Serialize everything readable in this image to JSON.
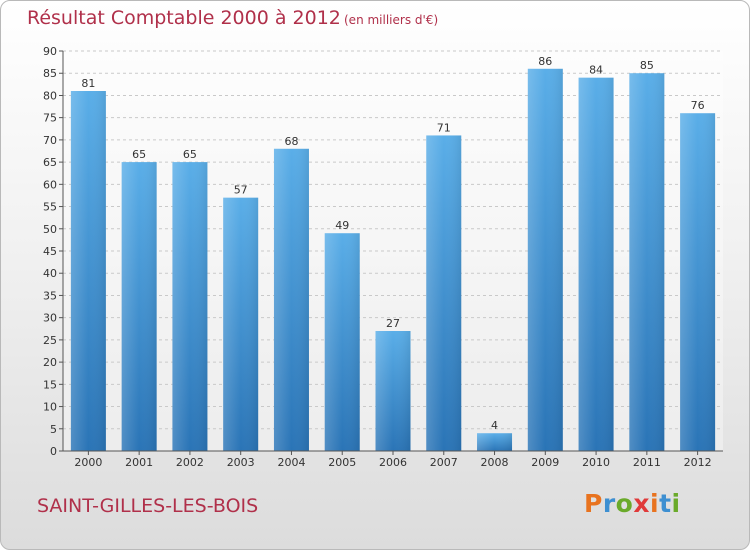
{
  "title": "Résultat Comptable 2000 à 2012",
  "subtitle": "(en milliers d'€)",
  "commune": "SAINT-GILLES-LES-BOIS",
  "logo": {
    "text": "Proxiti",
    "letter_colors": [
      "#e8731f",
      "#3d8fd1",
      "#6aaa2a",
      "#e03a3a",
      "#e8731f",
      "#3d8fd1",
      "#6aaa2a"
    ]
  },
  "colors": {
    "bar": "#3c8fd3",
    "bar_light": "#5aaee8",
    "bar_dark": "#2a74b6",
    "title": "#b0304a"
  },
  "chart_data": {
    "type": "bar",
    "title": "Résultat Comptable 2000 à 2012",
    "subtitle": "(en milliers d'€)",
    "xlabel": "",
    "ylabel": "",
    "categories": [
      "2000",
      "2001",
      "2002",
      "2003",
      "2004",
      "2005",
      "2006",
      "2007",
      "2008",
      "2009",
      "2010",
      "2011",
      "2012"
    ],
    "values": [
      81,
      65,
      65,
      57,
      68,
      49,
      27,
      71,
      4,
      86,
      84,
      85,
      76
    ],
    "ylim": [
      0,
      90
    ],
    "yticks": [
      0,
      5,
      10,
      15,
      20,
      25,
      30,
      35,
      40,
      45,
      50,
      55,
      60,
      65,
      70,
      75,
      80,
      85,
      90
    ],
    "grid": "horizontal dashed",
    "legend": "none"
  }
}
